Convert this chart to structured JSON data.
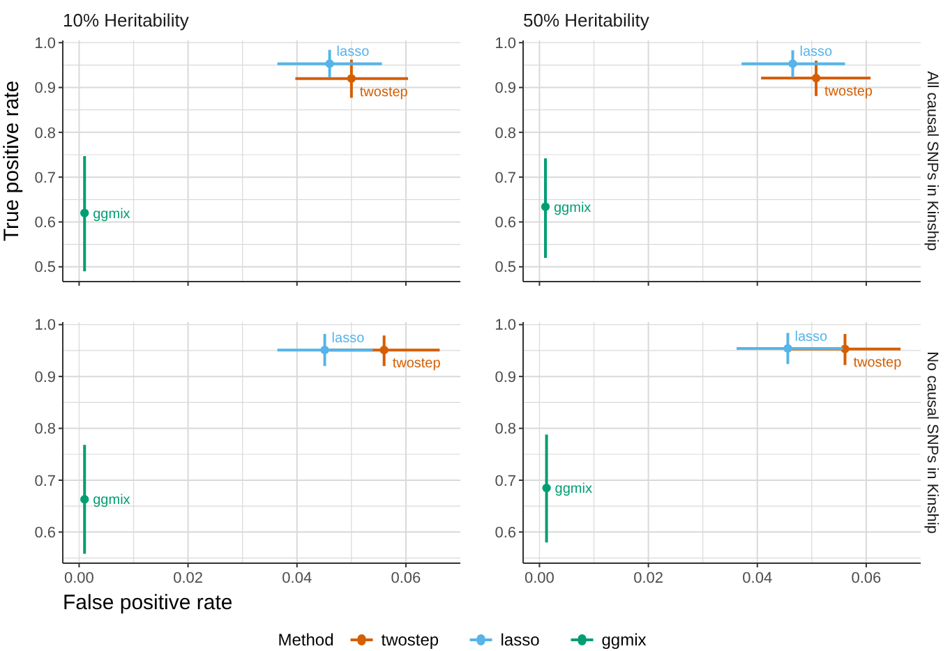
{
  "chart_data": [
    {
      "type": "scatter",
      "title": "10% Heritability",
      "ylabel": "True positive rate",
      "xlim": [
        -0.003,
        0.07
      ],
      "ylim": [
        0.467,
        1.005
      ],
      "xticks": [
        0,
        {
          "value": 0.01,
          "label": null
        },
        0.02,
        {
          "value": 0.03,
          "label": null
        },
        0.04,
        {
          "value": 0.05,
          "label": null
        },
        0.06
      ],
      "yticks": [
        0.5,
        {
          "value": 0.55,
          "label": null
        },
        0.6,
        {
          "value": 0.65,
          "label": null
        },
        0.7,
        {
          "value": 0.75,
          "label": null
        },
        0.8,
        {
          "value": 0.85,
          "label": null
        },
        0.9,
        {
          "value": 0.95,
          "label": null
        },
        {
          "value": 1,
          "label": "1.0"
        }
      ],
      "tick_labels": "y",
      "grid": true,
      "marker": "circle",
      "legend": false,
      "series": [
        {
          "name": "twostep",
          "color": "#d55e00",
          "x": [
            0.05
          ],
          "values": [
            0.92
          ],
          "errors": [
            [
              0.877,
              0.962
            ]
          ],
          "xerrors": [
            [
              0.0397,
              0.0604
            ]
          ]
        },
        {
          "name": "lasso",
          "color": "#56b4e9",
          "x": [
            0.046
          ],
          "values": [
            0.953
          ],
          "errors": [
            [
              0.922,
              0.984
            ]
          ],
          "xerrors": [
            [
              0.0364,
              0.0556
            ]
          ]
        },
        {
          "name": "ggmix",
          "color": "#009e73",
          "x": [
            0.001
          ],
          "values": [
            0.62
          ],
          "errors": [
            [
              0.49,
              0.747
            ]
          ]
        }
      ]
    },
    {
      "type": "scatter",
      "title": "50% Heritability",
      "annotations": [
        "All causal SNPs in Kinship"
      ],
      "xlim": [
        -0.003,
        0.07
      ],
      "ylim": [
        0.467,
        1.005
      ],
      "xticks": [
        0,
        {
          "value": 0.01,
          "label": null
        },
        0.02,
        {
          "value": 0.03,
          "label": null
        },
        0.04,
        {
          "value": 0.05,
          "label": null
        },
        0.06
      ],
      "yticks": [
        0.5,
        {
          "value": 0.55,
          "label": null
        },
        0.6,
        {
          "value": 0.65,
          "label": null
        },
        0.7,
        {
          "value": 0.75,
          "label": null
        },
        0.8,
        {
          "value": 0.85,
          "label": null
        },
        0.9,
        {
          "value": 0.95,
          "label": null
        },
        {
          "value": 1,
          "label": "1.0"
        }
      ],
      "tick_labels": "y",
      "grid": true,
      "marker": "circle",
      "legend": false,
      "series": [
        {
          "name": "twostep",
          "color": "#d55e00",
          "x": [
            0.0508
          ],
          "values": [
            0.921
          ],
          "errors": [
            [
              0.881,
              0.96
            ]
          ],
          "xerrors": [
            [
              0.0407,
              0.0608
            ]
          ]
        },
        {
          "name": "lasso",
          "color": "#56b4e9",
          "x": [
            0.0465
          ],
          "values": [
            0.953
          ],
          "errors": [
            [
              0.923,
              0.983
            ]
          ],
          "xerrors": [
            [
              0.0371,
              0.0561
            ]
          ]
        },
        {
          "name": "ggmix",
          "color": "#009e73",
          "x": [
            0.0011
          ],
          "values": [
            0.634
          ],
          "errors": [
            [
              0.52,
              0.742
            ]
          ]
        }
      ]
    },
    {
      "type": "scatter",
      "xlabel": "False positive rate",
      "legend_title": "Method",
      "xlim": [
        -0.003,
        0.07
      ],
      "ylim": [
        0.54,
        1.005
      ],
      "xticks": [
        {
          "value": 0,
          "label": "0.00"
        },
        {
          "value": 0.01,
          "label": null
        },
        0.02,
        {
          "value": 0.03,
          "label": null
        },
        0.04,
        {
          "value": 0.05,
          "label": null
        },
        0.06
      ],
      "yticks": [
        {
          "value": 0.55,
          "label": null
        },
        0.6,
        {
          "value": 0.65,
          "label": null
        },
        0.7,
        {
          "value": 0.75,
          "label": null
        },
        0.8,
        {
          "value": 0.85,
          "label": null
        },
        0.9,
        {
          "value": 0.95,
          "label": null
        },
        {
          "value": 1,
          "label": "1.0"
        }
      ],
      "grid": true,
      "marker": "circle",
      "legend": "bottom",
      "series": [
        {
          "name": "twostep",
          "color": "#d55e00",
          "x": [
            0.056
          ],
          "values": [
            0.951
          ],
          "errors": [
            [
              0.92,
              0.979
            ]
          ],
          "xerrors": [
            [
              0.046,
              0.0662
            ]
          ]
        },
        {
          "name": "lasso",
          "color": "#56b4e9",
          "x": [
            0.0451
          ],
          "values": [
            0.951
          ],
          "errors": [
            [
              0.92,
              0.982
            ]
          ],
          "xerrors": [
            [
              0.0364,
              0.0539
            ]
          ]
        },
        {
          "name": "ggmix",
          "color": "#009e73",
          "x": [
            0.001
          ],
          "values": [
            0.663
          ],
          "errors": [
            [
              0.558,
              0.768
            ]
          ]
        }
      ]
    },
    {
      "type": "scatter",
      "annotations": [
        "No causal SNPs in Kinship"
      ],
      "xlim": [
        -0.003,
        0.07
      ],
      "ylim": [
        0.54,
        1.005
      ],
      "xticks": [
        {
          "value": 0,
          "label": "0.00"
        },
        {
          "value": 0.01,
          "label": null
        },
        0.02,
        {
          "value": 0.03,
          "label": null
        },
        0.04,
        {
          "value": 0.05,
          "label": null
        },
        0.06
      ],
      "yticks": [
        {
          "value": 0.55,
          "label": null
        },
        0.6,
        {
          "value": 0.65,
          "label": null
        },
        0.7,
        {
          "value": 0.75,
          "label": null
        },
        0.8,
        {
          "value": 0.85,
          "label": null
        },
        0.9,
        {
          "value": 0.95,
          "label": null
        },
        {
          "value": 1,
          "label": "1.0"
        }
      ],
      "grid": true,
      "marker": "circle",
      "legend": false,
      "series": [
        {
          "name": "twostep",
          "color": "#d55e00",
          "x": [
            0.0561
          ],
          "values": [
            0.953
          ],
          "errors": [
            [
              0.922,
              0.982
            ]
          ],
          "xerrors": [
            [
              0.046,
              0.0663
            ]
          ]
        },
        {
          "name": "lasso",
          "color": "#56b4e9",
          "x": [
            0.0456
          ],
          "values": [
            0.954
          ],
          "errors": [
            [
              0.924,
              0.984
            ]
          ],
          "xerrors": [
            [
              0.0362,
              0.0557
            ]
          ]
        },
        {
          "name": "ggmix",
          "color": "#009e73",
          "x": [
            0.0013
          ],
          "values": [
            0.685
          ],
          "errors": [
            [
              0.58,
              0.788
            ]
          ]
        }
      ]
    }
  ]
}
